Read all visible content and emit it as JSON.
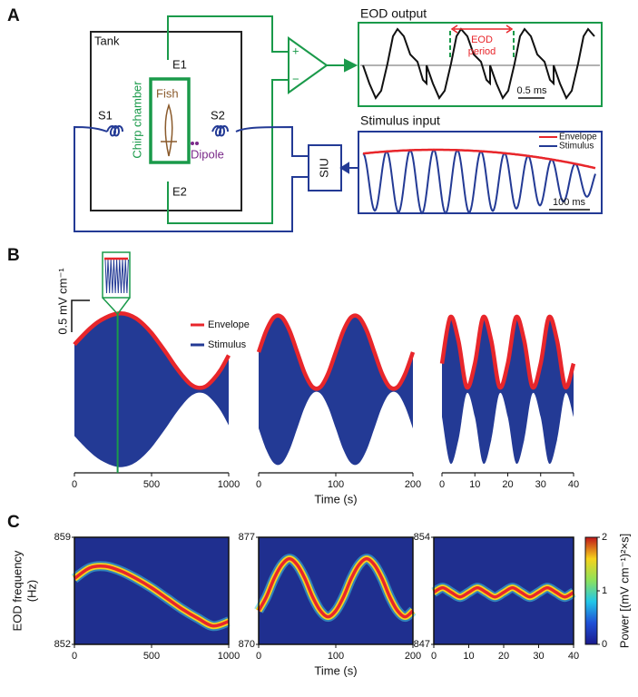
{
  "panel_labels": [
    "A",
    "B",
    "C"
  ],
  "diagram": {
    "tank": "Tank",
    "electrodes": [
      "E1",
      "E2"
    ],
    "speakers": [
      "S1",
      "S2"
    ],
    "chamber": "Chirp chamber",
    "fish": "Fish",
    "dipole": "Dipole",
    "amp_signs": [
      "+",
      "−"
    ],
    "siu": "SIU",
    "eod_output": {
      "title": "EOD output",
      "period_label": [
        "EOD",
        "period"
      ],
      "scale": "0.5 ms"
    },
    "stimulus_input": {
      "title": "Stimulus input",
      "legend": [
        "Envelope",
        "Stimulus"
      ],
      "scale": "100 ms"
    }
  },
  "chart_data": [
    {
      "type": "area",
      "x": [
        0,
        50,
        100,
        150,
        200,
        250,
        300,
        350,
        400,
        450,
        500,
        550,
        600,
        650,
        700,
        750,
        800,
        850,
        900,
        950,
        1000
      ],
      "series": [
        {
          "name": "Envelope",
          "color": "#e8262b",
          "values": [
            0.72,
            0.85,
            0.97,
            1.07,
            1.14,
            1.19,
            1.21,
            1.19,
            1.13,
            1.03,
            0.9,
            0.74,
            0.57,
            0.39,
            0.23,
            0.1,
            0.04,
            0.06,
            0.17,
            0.33,
            0.55
          ]
        },
        {
          "name": "Stimulus",
          "color": "#233a95"
        }
      ],
      "xlim": [
        0,
        1000
      ],
      "xticks": [
        0,
        500,
        1000
      ],
      "ylim": [
        -1.3,
        1.3
      ],
      "scalebar": {
        "value": 0.5,
        "label": "0.5 mV cm⁻¹"
      },
      "marker_x": 280
    },
    {
      "type": "area",
      "x": [
        0,
        10,
        20,
        30,
        40,
        50,
        60,
        70,
        80,
        90,
        100,
        110,
        120,
        130,
        140,
        150,
        160,
        170,
        180,
        190,
        200
      ],
      "series": [
        {
          "color": "#e8262b",
          "values": [
            0.6,
            0.94,
            1.15,
            1.15,
            0.94,
            0.6,
            0.26,
            0.05,
            0.05,
            0.26,
            0.6,
            0.94,
            1.15,
            1.15,
            0.94,
            0.6,
            0.26,
            0.05,
            0.05,
            0.26,
            0.6
          ]
        },
        {
          "color": "#233a95"
        }
      ],
      "xlim": [
        0,
        200
      ],
      "xticks": [
        0,
        100,
        200
      ],
      "ylim": [
        -1.3,
        1.3
      ],
      "xlabel": "Time (s)"
    },
    {
      "type": "area",
      "x": [
        0,
        2.5,
        5,
        7.5,
        10,
        12.5,
        15,
        17.5,
        20,
        22.5,
        25,
        27.5,
        30,
        32.5,
        35,
        37.5,
        40
      ],
      "series": [
        {
          "color": "#e8262b",
          "values": [
            0.42,
            1.15,
            0.78,
            0.05,
            0.42,
            1.15,
            0.78,
            0.05,
            0.42,
            1.15,
            0.78,
            0.05,
            0.42,
            1.15,
            0.78,
            0.05,
            0.42
          ]
        },
        {
          "color": "#233a95"
        }
      ],
      "xlim": [
        0,
        40
      ],
      "xticks": [
        0,
        10,
        20,
        30,
        40
      ],
      "ylim": [
        -1.3,
        1.3
      ]
    },
    {
      "type": "spectrogram",
      "x": [
        0,
        100,
        200,
        300,
        400,
        500,
        600,
        700,
        800,
        900,
        1000
      ],
      "values": [
        856.3,
        857.0,
        857.1,
        856.8,
        856.3,
        855.7,
        855.0,
        854.3,
        853.7,
        853.2,
        853.5
      ],
      "color": "#e8262b",
      "background": "#1f2f8f",
      "xlim": [
        0,
        1000
      ],
      "xticks": [
        0,
        500,
        1000
      ],
      "ylim": [
        852,
        859
      ],
      "yticks": [
        852,
        859
      ],
      "ylabel": [
        "EOD frequency",
        "(Hz)"
      ]
    },
    {
      "type": "spectrogram",
      "x": [
        0,
        10,
        20,
        30,
        40,
        50,
        60,
        70,
        80,
        90,
        100,
        110,
        120,
        130,
        140,
        150,
        160,
        170,
        180,
        190,
        200
      ],
      "values": [
        872.2,
        873.1,
        874.3,
        875.2,
        875.6,
        875.2,
        874.3,
        873.1,
        872.2,
        871.8,
        872.2,
        873.1,
        874.3,
        875.2,
        875.6,
        875.2,
        874.3,
        873.1,
        872.2,
        871.8,
        872.2
      ],
      "color": "#e8262b",
      "background": "#1f2f8f",
      "xlim": [
        0,
        200
      ],
      "xticks": [
        0,
        100,
        200
      ],
      "ylim": [
        870,
        877
      ],
      "yticks": [
        870,
        877
      ],
      "xlabel": "Time (s)"
    },
    {
      "type": "spectrogram",
      "x": [
        0,
        2.5,
        5,
        7.5,
        10,
        12.5,
        15,
        17.5,
        20,
        22.5,
        25,
        27.5,
        30,
        32.5,
        35,
        37.5,
        40
      ],
      "values": [
        850.4,
        850.7,
        850.4,
        850.1,
        850.4,
        850.7,
        850.4,
        850.1,
        850.4,
        850.7,
        850.4,
        850.1,
        850.4,
        850.7,
        850.4,
        850.1,
        850.4
      ],
      "color": "#e8262b",
      "background": "#1f2f8f",
      "xlim": [
        0,
        40
      ],
      "xticks": [
        0,
        10,
        20,
        30,
        40
      ],
      "ylim": [
        847,
        854
      ],
      "yticks": [
        847,
        854
      ]
    }
  ],
  "colorbar": {
    "lim": [
      0,
      2
    ],
    "ticks": [
      0,
      1,
      2
    ],
    "label": "Power [(mV cm⁻¹)²×s]"
  }
}
